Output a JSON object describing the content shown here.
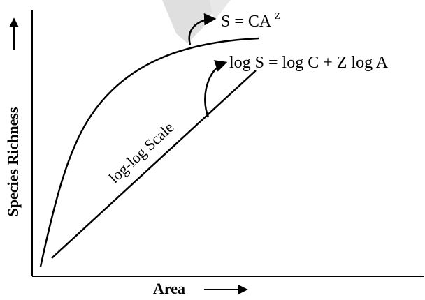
{
  "diagram": {
    "y_axis_label": "Species Richness",
    "x_axis_label": "Area",
    "curve_equation": {
      "prefix": "S = CA",
      "exponent": "Z"
    },
    "line_equation": "log S = log C + Z log A",
    "line_label": "log-log Scale"
  },
  "colors": {
    "ink": "#000000",
    "background": "#ffffff",
    "watermark": "#d4d4d4"
  }
}
